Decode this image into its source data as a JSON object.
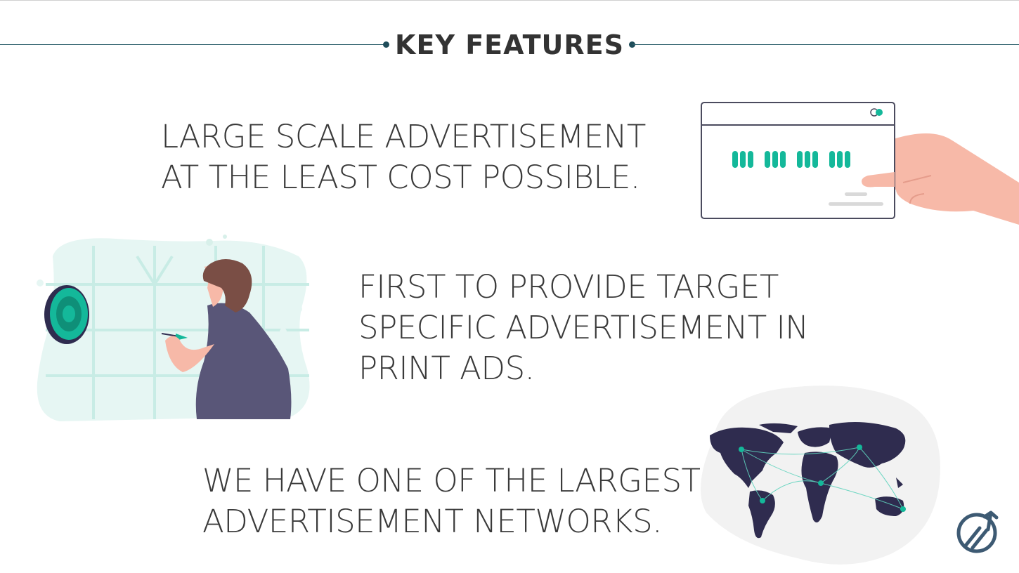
{
  "header": {
    "title": "KEY FEATURES"
  },
  "features": [
    {
      "lines": [
        "LARGE SCALE ADVERTISEMENT",
        "AT THE LEAST COST POSSIBLE."
      ]
    },
    {
      "lines": [
        "FIRST TO PROVIDE TARGET",
        "SPECIFIC ADVERTISEMENT IN",
        "PRINT ADS."
      ]
    },
    {
      "lines": [
        "WE HAVE ONE OF THE LARGEST",
        "ADVERTISEMENT NETWORKS."
      ]
    }
  ],
  "icons": {
    "illustration_1": "hand-holding-card-icon",
    "illustration_2": "person-throwing-dart-icon",
    "illustration_3": "world-network-map-icon",
    "logo": "brand-logo-icon"
  },
  "colors": {
    "accent": "#14b89a",
    "rule": "#1f4d5a",
    "text": "#3a3a3a",
    "skin": "#f7b9a8",
    "shirt": "#595678",
    "hair": "#7a4e45"
  }
}
